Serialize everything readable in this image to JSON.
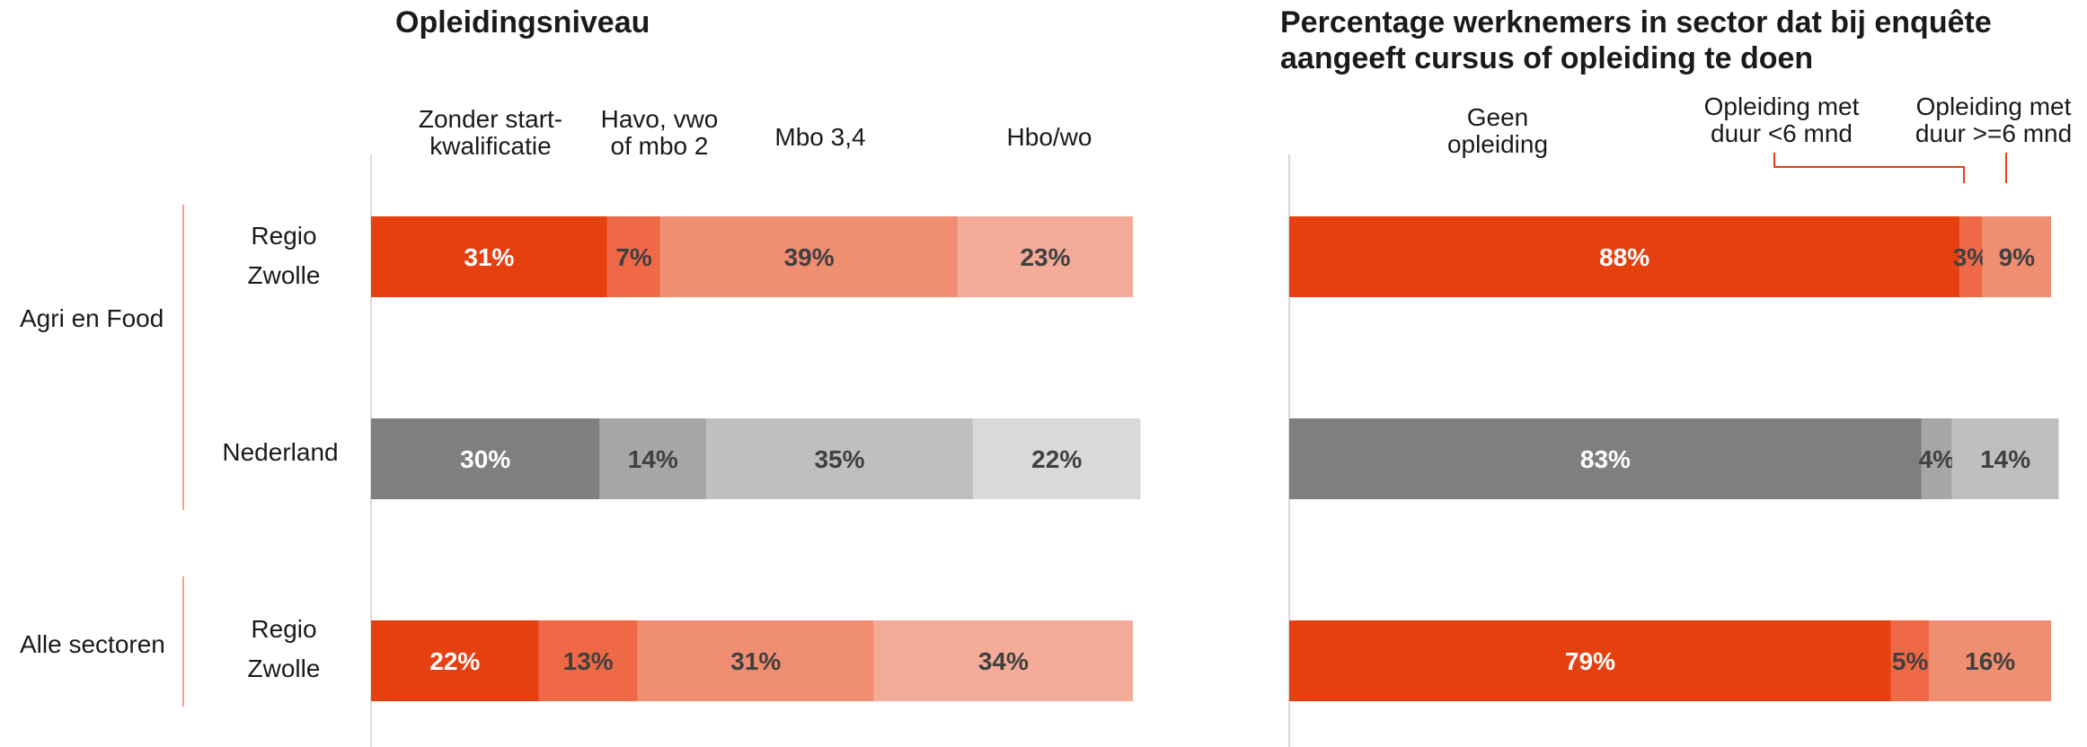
{
  "chart_data": [
    {
      "type": "bar",
      "orientation": "horizontal",
      "stacked": true,
      "title": "Opleidingsniveau",
      "series_names": [
        "Zonder start-\nkwalificatie",
        "Havo, vwo\nof mbo 2",
        "Mbo 3,4",
        "Hbo/wo"
      ],
      "groups": [
        {
          "label": "Agri en Food",
          "rows": [
            {
              "label": "Regio\nZwolle",
              "values": [
                31,
                7,
                39,
                23
              ],
              "labels": [
                "31%",
                "7%",
                "39%",
                "23%"
              ],
              "colors": [
                "#E64011",
                "#EF6947",
                "#F08E72",
                "#F4AB98"
              ],
              "text_colors": [
                "#ffffff",
                "#404040",
                "#404040",
                "#404040"
              ]
            },
            {
              "label": "Nederland",
              "values": [
                30,
                14,
                35,
                22
              ],
              "labels": [
                "30%",
                "14%",
                "35%",
                "22%"
              ],
              "colors": [
                "#7F7F7F",
                "#A6A6A6",
                "#BFBFBF",
                "#D9D9D9"
              ],
              "text_colors": [
                "#ffffff",
                "#404040",
                "#404040",
                "#404040"
              ]
            }
          ]
        },
        {
          "label": "Alle sectoren",
          "rows": [
            {
              "label": "Regio\nZwolle",
              "values": [
                22,
                13,
                31,
                34
              ],
              "labels": [
                "22%",
                "13%",
                "31%",
                "34%"
              ],
              "colors": [
                "#E64011",
                "#EF6947",
                "#F08E72",
                "#F4AB98"
              ],
              "text_colors": [
                "#ffffff",
                "#404040",
                "#404040",
                "#404040"
              ]
            }
          ]
        }
      ]
    },
    {
      "type": "bar",
      "orientation": "horizontal",
      "stacked": true,
      "title": "Percentage werknemers in sector dat bij enquête\naangeeft cursus of opleiding te doen",
      "series_names": [
        "Geen\nopleiding",
        "Opleiding met\nduur <6 mnd",
        "Opleiding met\nduur >=6 mnd"
      ],
      "groups": [
        {
          "label": "Agri en Food",
          "rows": [
            {
              "label": "Regio\nZwolle",
              "values": [
                88,
                3,
                9
              ],
              "labels": [
                "88%",
                "3%",
                "9%"
              ],
              "colors": [
                "#E64011",
                "#EF6947",
                "#F08E72"
              ],
              "text_colors": [
                "#ffffff",
                "#404040",
                "#404040"
              ]
            },
            {
              "label": "Nederland",
              "values": [
                83,
                4,
                14
              ],
              "labels": [
                "83%",
                "4%",
                "14%"
              ],
              "colors": [
                "#7F7F7F",
                "#A6A6A6",
                "#BFBFBF"
              ],
              "text_colors": [
                "#ffffff",
                "#404040",
                "#404040"
              ]
            }
          ]
        },
        {
          "label": "Alle sectoren",
          "rows": [
            {
              "label": "Regio\nZwolle",
              "values": [
                79,
                5,
                16
              ],
              "labels": [
                "79%",
                "5%",
                "16%"
              ],
              "colors": [
                "#E64011",
                "#EF6947",
                "#F08E72"
              ],
              "text_colors": [
                "#ffffff",
                "#404040",
                "#404040"
              ]
            }
          ]
        }
      ]
    }
  ],
  "colors": {
    "accent": "#E64011",
    "axis": "#D9D9D9",
    "bracket": "#F4A08A",
    "leader": "#E64011"
  }
}
